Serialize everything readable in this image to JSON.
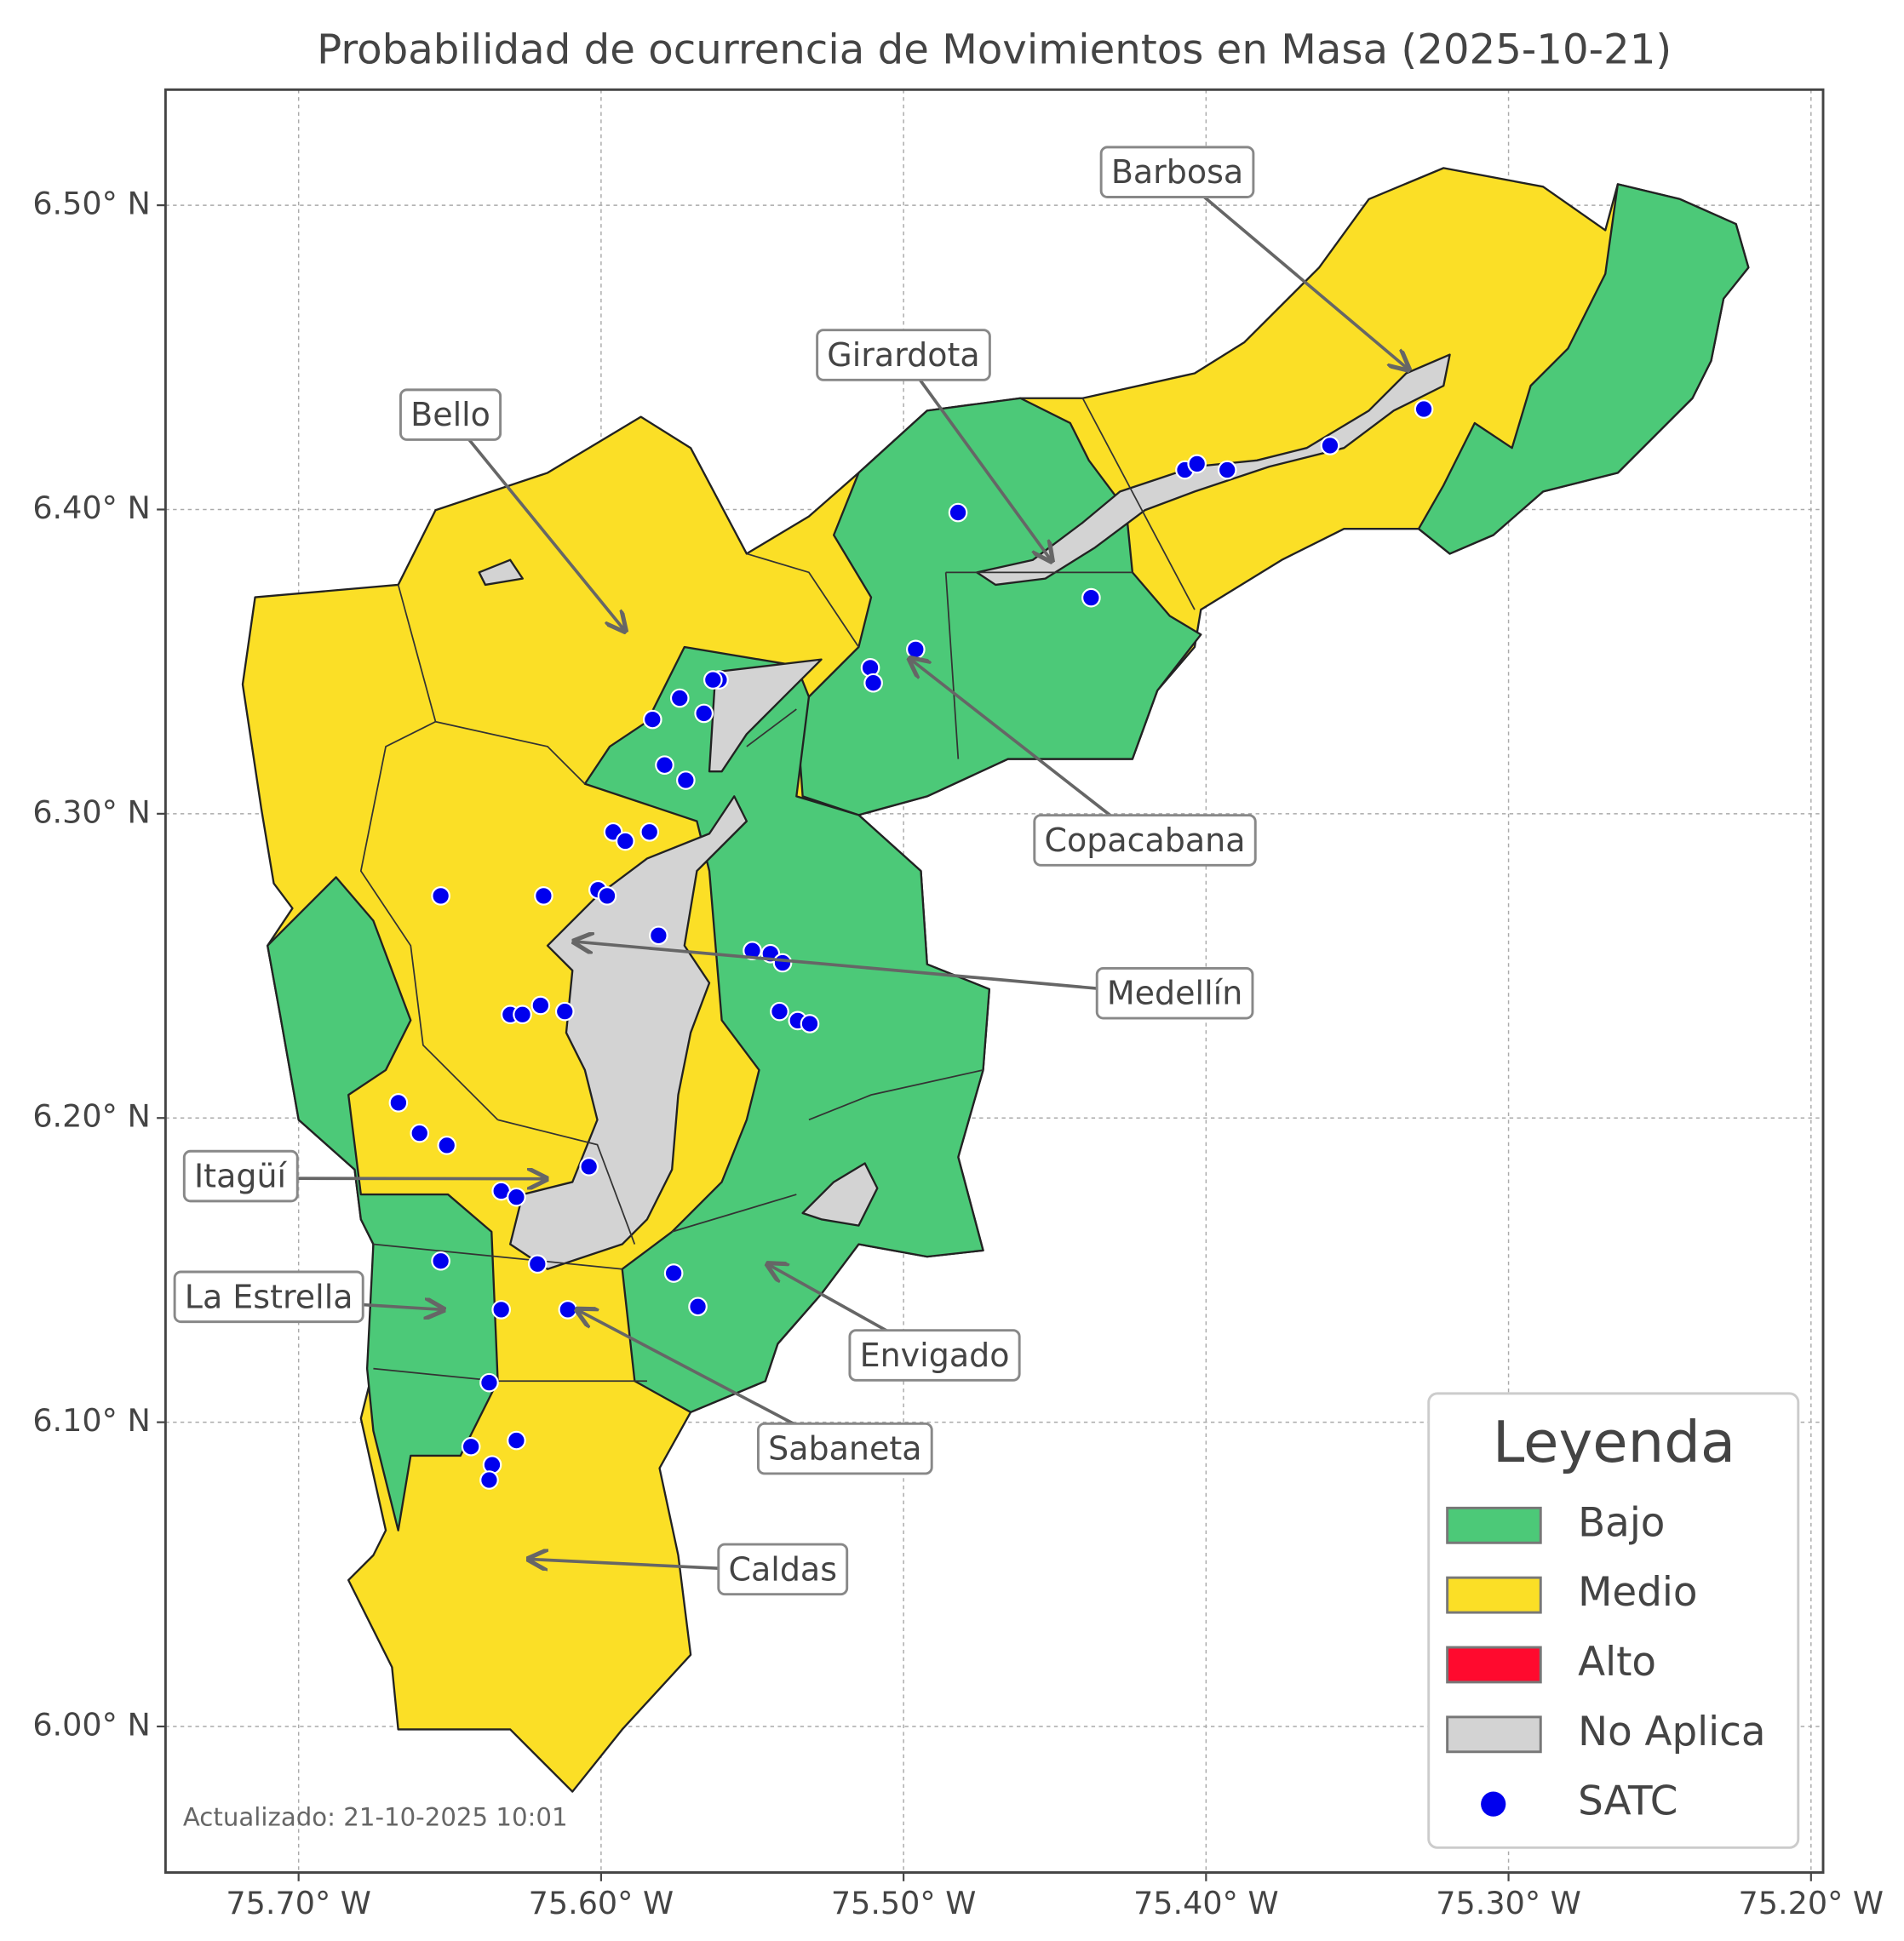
{
  "chart_data": {
    "type": "map",
    "title": "Probabilidad de ocurrencia de Movimientos en Masa (2025-10-21)",
    "xlim": [
      -75.744,
      -75.196
    ],
    "ylim": [
      5.952,
      6.538
    ],
    "xticks": [
      {
        "value": -75.7,
        "label": "75.70° W"
      },
      {
        "value": -75.6,
        "label": "75.60° W"
      },
      {
        "value": -75.5,
        "label": "75.50° W"
      },
      {
        "value": -75.4,
        "label": "75.40° W"
      },
      {
        "value": -75.3,
        "label": "75.30° W"
      },
      {
        "value": -75.2,
        "label": "75.20° W"
      }
    ],
    "yticks": [
      {
        "value": 6.0,
        "label": "6.00° N"
      },
      {
        "value": 6.1,
        "label": "6.10° N"
      },
      {
        "value": 6.2,
        "label": "6.20° N"
      },
      {
        "value": 6.3,
        "label": "6.30° N"
      },
      {
        "value": 6.4,
        "label": "6.40° N"
      },
      {
        "value": 6.5,
        "label": "6.50° N"
      }
    ],
    "grid": true,
    "legend": {
      "title": "Leyenda",
      "position": "lower right",
      "entries": [
        {
          "name": "Bajo",
          "color": "#4cc978"
        },
        {
          "name": "Medio",
          "color": "#fbdf26"
        },
        {
          "name": "Alto",
          "color": "#ff0a2e"
        },
        {
          "name": "No Aplica",
          "color": "#d3d3d3"
        }
      ]
    },
    "points": {
      "name": "SATC",
      "color": "#0000ee",
      "x": [
        -75.482,
        -75.407,
        -75.403,
        -75.393,
        -75.359,
        -75.328,
        -75.438,
        -75.496,
        -75.511,
        -75.51,
        -75.561,
        -75.563,
        -75.574,
        -75.583,
        -75.566,
        -75.579,
        -75.572,
        -75.596,
        -75.592,
        -75.584,
        -75.619,
        -75.653,
        -75.601,
        -75.598,
        -75.581,
        -75.55,
        -75.544,
        -75.54,
        -75.541,
        -75.535,
        -75.531,
        -75.62,
        -75.612,
        -75.63,
        -75.626,
        -75.667,
        -75.66,
        -75.651,
        -75.604,
        -75.633,
        -75.628,
        -75.621,
        -75.653,
        -75.576,
        -75.568,
        -75.633,
        -75.611,
        -75.637,
        -75.643,
        -75.628,
        -75.636,
        -75.637
      ],
      "y": [
        6.399,
        6.413,
        6.415,
        6.413,
        6.421,
        6.433,
        6.371,
        6.354,
        6.348,
        6.343,
        6.344,
        6.344,
        6.338,
        6.331,
        6.333,
        6.316,
        6.311,
        6.294,
        6.291,
        6.294,
        6.273,
        6.273,
        6.275,
        6.273,
        6.26,
        6.255,
        6.254,
        6.251,
        6.235,
        6.232,
        6.231,
        6.237,
        6.235,
        6.234,
        6.234,
        6.205,
        6.195,
        6.191,
        6.184,
        6.176,
        6.174,
        6.152,
        6.153,
        6.149,
        6.138,
        6.137,
        6.137,
        6.113,
        6.092,
        6.094,
        6.086,
        6.081
      ]
    },
    "annotations": [
      {
        "text": "Barbosa",
        "x": -75.333,
        "y": 6.446
      },
      {
        "text": "Girardota",
        "x": -75.451,
        "y": 6.383
      },
      {
        "text": "Bello",
        "x": -75.592,
        "y": 6.36
      },
      {
        "text": "Copacabana",
        "x": -75.498,
        "y": 6.351
      },
      {
        "text": "Medellín",
        "x": -75.609,
        "y": 6.258
      },
      {
        "text": "Itagüí",
        "x": -75.618,
        "y": 6.18
      },
      {
        "text": "La Estrella",
        "x": -75.652,
        "y": 6.137
      },
      {
        "text": "Envigado",
        "x": -75.545,
        "y": 6.152
      },
      {
        "text": "Sabaneta",
        "x": -75.608,
        "y": 6.137
      },
      {
        "text": "Caldas",
        "x": -75.624,
        "y": 6.055
      }
    ],
    "note": "Actualizado: 21-10-2025 10:01"
  }
}
